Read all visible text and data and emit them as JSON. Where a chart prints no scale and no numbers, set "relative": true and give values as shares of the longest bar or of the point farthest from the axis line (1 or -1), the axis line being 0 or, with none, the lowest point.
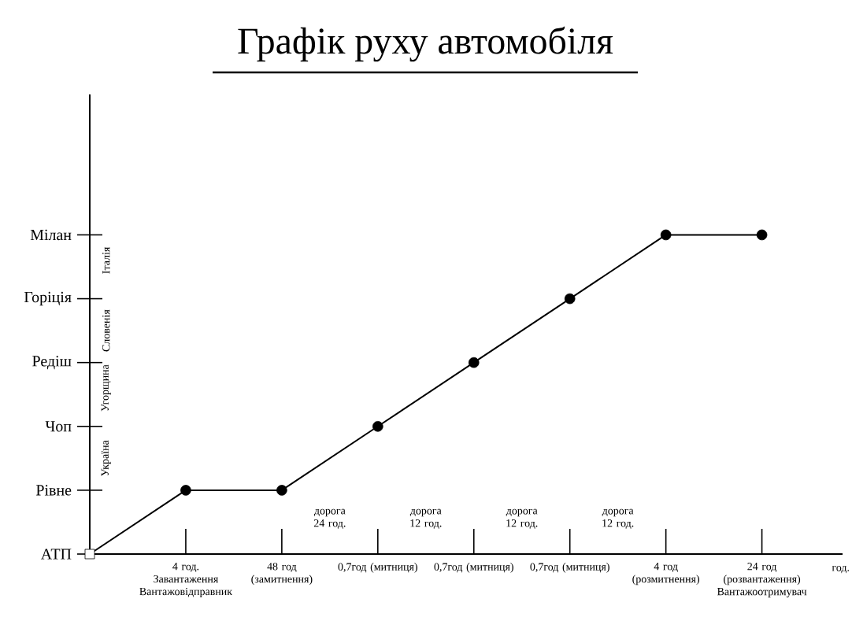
{
  "chart_data": {
    "type": "line",
    "title": "Графік руху автомобіля",
    "xlabel": "год.",
    "relative": true,
    "categories": [
      null,
      "4 год. Завантаження Вантажовідправник",
      "48 год (замитнення)",
      "0,7год (митниця)",
      "0,7год (митниця)",
      "0,7год (митниця)",
      "4 год (розмитнення)",
      "24 год (розвантаження) Вантажоотримувач"
    ],
    "series": [
      {
        "color": "#000000",
        "marker": "none",
        "values": [
          0,
          0.2,
          0.2,
          0.4,
          0.6,
          0.8,
          1,
          1
        ]
      },
      {
        "type": "scatter",
        "color": "#000000",
        "marker": "circle",
        "values": [
          null,
          0.2,
          0.2,
          0.4,
          0.6,
          0.8,
          1,
          1
        ]
      },
      {
        "type": "scatter",
        "color": "#000000",
        "marker": "square",
        "values": [
          0,
          null,
          null,
          null,
          null,
          null,
          null,
          null
        ]
      }
    ],
    "annotations": [
      "АТП",
      "Рівне",
      "Чоп",
      "Редіш",
      "Горіція",
      "Мілан",
      "дорога 24 год.",
      "дорога 12 год.",
      "дорога 12 год.",
      "дорога 12 год.",
      "Україна",
      "Угорщина",
      "Словенія",
      "Італія"
    ]
  }
}
